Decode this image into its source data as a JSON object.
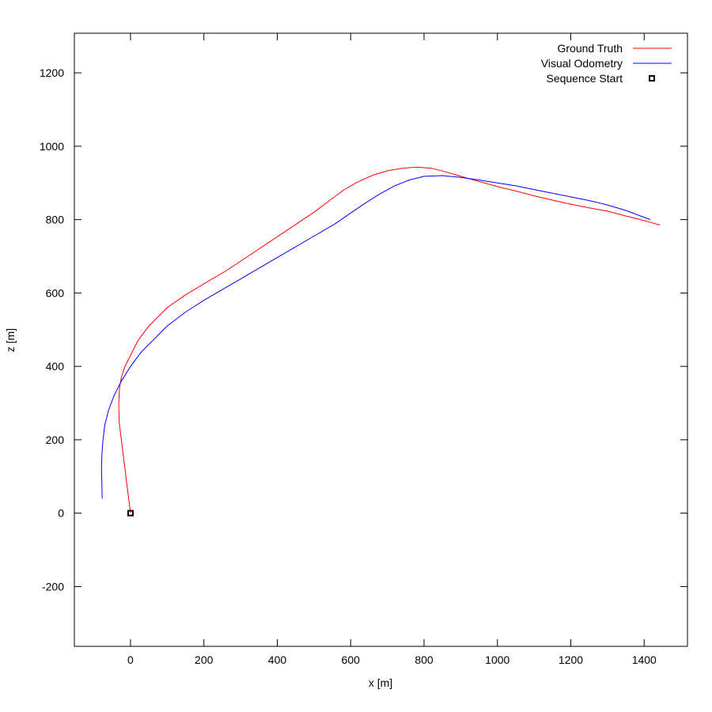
{
  "chart_data": {
    "type": "line",
    "title": "",
    "xlabel": "x [m]",
    "ylabel": "z [m]",
    "xlim": [
      -153,
      1518
    ],
    "ylim": [
      -363,
      1308
    ],
    "xticks": [
      0,
      200,
      400,
      600,
      800,
      1000,
      1200,
      1400
    ],
    "yticks": [
      -200,
      0,
      200,
      400,
      600,
      800,
      1000,
      1200
    ],
    "grid": false,
    "legend_position": "top-right",
    "series": [
      {
        "name": "Ground Truth",
        "color": "#ff0000",
        "x": [
          0,
          -5,
          -10,
          -15,
          -20,
          -25,
          -31,
          -32,
          -30,
          -25,
          -15,
          0,
          20,
          50,
          100,
          150,
          200,
          260,
          320,
          380,
          440,
          500,
          540,
          580,
          620,
          660,
          700,
          740,
          780,
          820,
          860,
          900,
          950,
          1000,
          1050,
          1100,
          1150,
          1200,
          1250,
          1300,
          1350,
          1390,
          1420,
          1443
        ],
        "y": [
          0,
          40,
          80,
          120,
          160,
          200,
          250,
          300,
          340,
          370,
          400,
          430,
          470,
          510,
          560,
          595,
          625,
          660,
          700,
          740,
          780,
          820,
          850,
          880,
          903,
          921,
          933,
          940,
          943,
          940,
          930,
          918,
          904,
          890,
          878,
          865,
          853,
          842,
          832,
          823,
          810,
          800,
          792,
          785
        ]
      },
      {
        "name": "Visual Odometry",
        "color": "#0000ff",
        "x": [
          -77,
          -78,
          -79,
          -78,
          -75,
          -70,
          -60,
          -45,
          -25,
          0,
          30,
          60,
          100,
          150,
          200,
          260,
          320,
          380,
          440,
          500,
          560,
          600,
          640,
          680,
          720,
          760,
          800,
          850,
          900,
          950,
          1000,
          1050,
          1100,
          1150,
          1200,
          1250,
          1300,
          1350,
          1390,
          1417
        ],
        "y": [
          40,
          80,
          120,
          160,
          200,
          240,
          280,
          320,
          360,
          400,
          440,
          470,
          510,
          548,
          580,
          615,
          650,
          685,
          720,
          755,
          790,
          818,
          845,
          870,
          892,
          908,
          918,
          920,
          915,
          908,
          900,
          892,
          882,
          872,
          862,
          852,
          840,
          825,
          810,
          800
        ]
      },
      {
        "name": "Sequence Start",
        "color": "#000000",
        "marker": "square",
        "x": [
          0
        ],
        "y": [
          0
        ]
      }
    ]
  }
}
